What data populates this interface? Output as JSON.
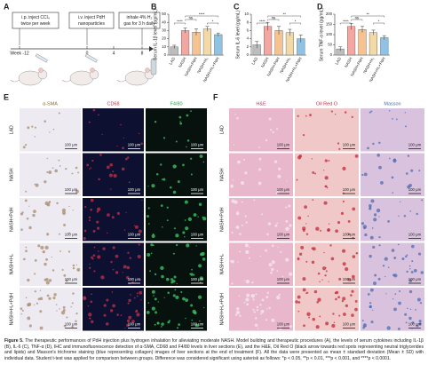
{
  "panel_a": {
    "label": "A",
    "steps": [
      [
        "i.p. inject CCl₄",
        "twice per week"
      ],
      [
        "i.v. inject PdH",
        "nanoparticles"
      ],
      [
        "inhale 4% H₂",
        "gas for 3 h daily"
      ]
    ],
    "timeline": [
      "Week -12",
      "0",
      "4",
      "8"
    ]
  },
  "chart_data": [
    {
      "type": "bar",
      "panel": "B",
      "ylabel": "Serum IL-1β level (pg/mL)",
      "categories": [
        "LAD",
        "NASH",
        "NASH+PdH",
        "NASH+H₂",
        "NASH+H₂+PdH"
      ],
      "values": [
        10,
        30,
        28,
        32,
        25
      ],
      "errors": [
        2,
        3,
        4,
        3,
        2
      ],
      "colors": [
        "#bdbdbd",
        "#f4a7a0",
        "#f6c28f",
        "#f3d9a6",
        "#8fc3e6"
      ],
      "ylim": [
        0,
        50
      ],
      "yticks": [
        0,
        10,
        20,
        30,
        40,
        50
      ],
      "annotations": [
        "****",
        "ns",
        "****",
        "*"
      ]
    },
    {
      "type": "bar",
      "panel": "C",
      "ylabel": "Serum IL-6 level (pg/mL)",
      "categories": [
        "LAD",
        "NASH",
        "NASH+PdH",
        "NASH+H₂",
        "NASH+H₂+PdH"
      ],
      "values": [
        2.5,
        7,
        6,
        5.5,
        4
      ],
      "errors": [
        0.8,
        1,
        1,
        0.8,
        0.9
      ],
      "colors": [
        "#bdbdbd",
        "#f4a7a0",
        "#f6c28f",
        "#f3d9a6",
        "#8fc3e6"
      ],
      "ylim": [
        0,
        10
      ],
      "yticks": [
        0,
        2,
        4,
        6,
        8,
        10
      ],
      "annotations": [
        "****",
        "ns",
        "**",
        "*"
      ]
    },
    {
      "type": "bar",
      "panel": "D",
      "ylabel": "Serum TNF-α level (pg/mL)",
      "categories": [
        "LAD",
        "NASH",
        "NASH+PdH",
        "NASH+H₂",
        "NASH+H₂+PdH"
      ],
      "values": [
        30,
        140,
        125,
        110,
        85
      ],
      "errors": [
        10,
        15,
        15,
        12,
        10
      ],
      "colors": [
        "#bdbdbd",
        "#f4a7a0",
        "#f6c28f",
        "#f3d9a6",
        "#8fc3e6"
      ],
      "ylim": [
        0,
        200
      ],
      "yticks": [
        0,
        50,
        100,
        150,
        200
      ],
      "annotations": [
        "****",
        "ns",
        "**",
        "*"
      ]
    }
  ],
  "panel_e": {
    "label": "E",
    "columns": [
      "α-SMA",
      "CD68",
      "F4/80"
    ]
  },
  "panel_f": {
    "label": "F",
    "columns": [
      "H&E",
      "Oil Red O",
      "Masson"
    ]
  },
  "row_labels": [
    "LAD",
    "NASH",
    "NASH+PdH",
    "NASH+H₂",
    "NASH+H₂+PdH"
  ],
  "scale_bar": "100 μm",
  "caption": {
    "label": "Figure 5.",
    "text": "The therapeutic performances of PdH injection plus hydrogen inhalation for alleviating moderate NASH. Model building and therapeutic procedures (A), the levels of serum cytokines including IL-1β (B), IL-6 (C), TNF-α (D), IHC and immunofluorescence detection of α-SMA, CD68 and F4/80 levels in liver sections (E), and the H&E, Oil Red O (black arrow towards red spots representing neutral triglycerides and lipids) and Masson's trichrome staining (blue representing collagen) images of liver sections at the end of treatment (F). All the data were presented as mean ± standard deviation (Mean ± SD) with individual data. Student t-test was applied for comparison between groups. Difference was considered significant using asterisk as follows: *p < 0.05, **p < 0.01, ***p < 0.001, and ****p < 0.0001."
  }
}
